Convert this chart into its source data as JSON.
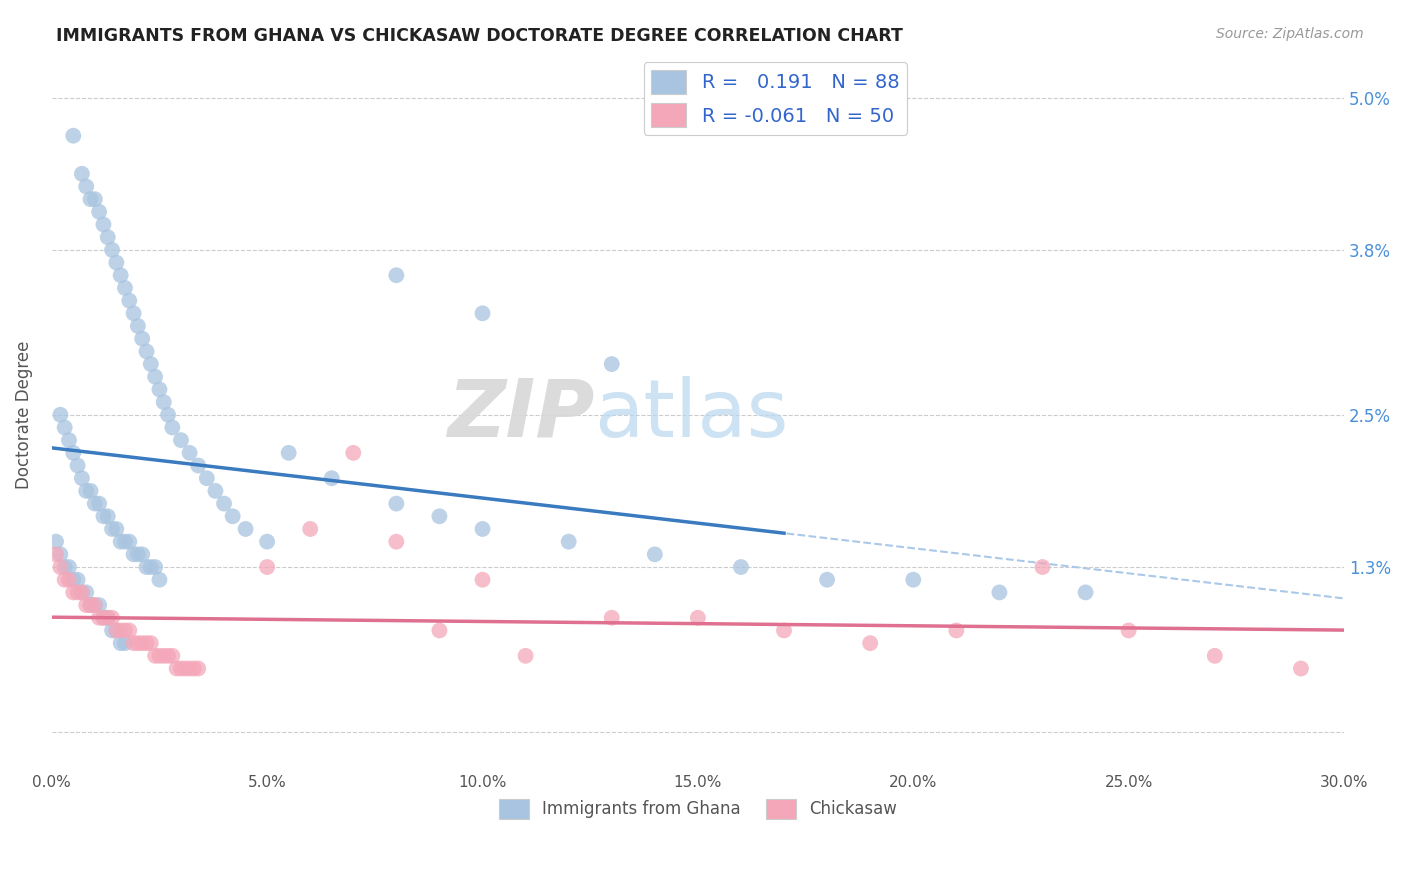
{
  "title": "IMMIGRANTS FROM GHANA VS CHICKASAW DOCTORATE DEGREE CORRELATION CHART",
  "source": "Source: ZipAtlas.com",
  "ylabel": "Doctorate Degree",
  "xmin": 0.0,
  "xmax": 0.3,
  "ymin": -0.003,
  "ymax": 0.053,
  "color_ghana": "#a8c4e0",
  "color_chickasaw": "#f4a7b9",
  "trendline_ghana_color": "#3a7abf",
  "trendline_chickasaw_color": "#e07090",
  "trendline_dashed_color": "#aac8e8",
  "watermark_zip": "ZIP",
  "watermark_atlas": "atlas",
  "ghana_x": [
    0.005,
    0.007,
    0.008,
    0.009,
    0.01,
    0.011,
    0.012,
    0.013,
    0.014,
    0.015,
    0.016,
    0.017,
    0.018,
    0.019,
    0.02,
    0.021,
    0.022,
    0.023,
    0.024,
    0.025,
    0.026,
    0.027,
    0.028,
    0.03,
    0.032,
    0.034,
    0.036,
    0.038,
    0.04,
    0.042,
    0.045,
    0.05,
    0.002,
    0.003,
    0.004,
    0.005,
    0.006,
    0.007,
    0.008,
    0.009,
    0.01,
    0.011,
    0.012,
    0.013,
    0.014,
    0.015,
    0.016,
    0.017,
    0.018,
    0.019,
    0.02,
    0.021,
    0.022,
    0.023,
    0.024,
    0.025,
    0.001,
    0.002,
    0.003,
    0.004,
    0.005,
    0.006,
    0.007,
    0.008,
    0.009,
    0.01,
    0.011,
    0.012,
    0.013,
    0.014,
    0.015,
    0.016,
    0.017,
    0.055,
    0.065,
    0.08,
    0.09,
    0.1,
    0.12,
    0.14,
    0.16,
    0.18,
    0.2,
    0.22,
    0.24,
    0.08,
    0.1,
    0.13
  ],
  "ghana_y": [
    0.047,
    0.044,
    0.043,
    0.042,
    0.042,
    0.041,
    0.04,
    0.039,
    0.038,
    0.037,
    0.036,
    0.035,
    0.034,
    0.033,
    0.032,
    0.031,
    0.03,
    0.029,
    0.028,
    0.027,
    0.026,
    0.025,
    0.024,
    0.023,
    0.022,
    0.021,
    0.02,
    0.019,
    0.018,
    0.017,
    0.016,
    0.015,
    0.025,
    0.024,
    0.023,
    0.022,
    0.021,
    0.02,
    0.019,
    0.019,
    0.018,
    0.018,
    0.017,
    0.017,
    0.016,
    0.016,
    0.015,
    0.015,
    0.015,
    0.014,
    0.014,
    0.014,
    0.013,
    0.013,
    0.013,
    0.012,
    0.015,
    0.014,
    0.013,
    0.013,
    0.012,
    0.012,
    0.011,
    0.011,
    0.01,
    0.01,
    0.01,
    0.009,
    0.009,
    0.008,
    0.008,
    0.007,
    0.007,
    0.022,
    0.02,
    0.018,
    0.017,
    0.016,
    0.015,
    0.014,
    0.013,
    0.012,
    0.012,
    0.011,
    0.011,
    0.036,
    0.033,
    0.029
  ],
  "chickasaw_x": [
    0.001,
    0.002,
    0.003,
    0.004,
    0.005,
    0.006,
    0.007,
    0.008,
    0.009,
    0.01,
    0.011,
    0.012,
    0.013,
    0.014,
    0.015,
    0.016,
    0.017,
    0.018,
    0.019,
    0.02,
    0.021,
    0.022,
    0.023,
    0.024,
    0.025,
    0.026,
    0.027,
    0.028,
    0.029,
    0.03,
    0.031,
    0.032,
    0.033,
    0.034,
    0.05,
    0.06,
    0.07,
    0.08,
    0.09,
    0.1,
    0.11,
    0.13,
    0.15,
    0.17,
    0.19,
    0.21,
    0.23,
    0.25,
    0.27,
    0.29
  ],
  "chickasaw_y": [
    0.014,
    0.013,
    0.012,
    0.012,
    0.011,
    0.011,
    0.011,
    0.01,
    0.01,
    0.01,
    0.009,
    0.009,
    0.009,
    0.009,
    0.008,
    0.008,
    0.008,
    0.008,
    0.007,
    0.007,
    0.007,
    0.007,
    0.007,
    0.006,
    0.006,
    0.006,
    0.006,
    0.006,
    0.005,
    0.005,
    0.005,
    0.005,
    0.005,
    0.005,
    0.013,
    0.016,
    0.022,
    0.015,
    0.008,
    0.012,
    0.006,
    0.009,
    0.009,
    0.008,
    0.007,
    0.008,
    0.013,
    0.008,
    0.006,
    0.005
  ]
}
